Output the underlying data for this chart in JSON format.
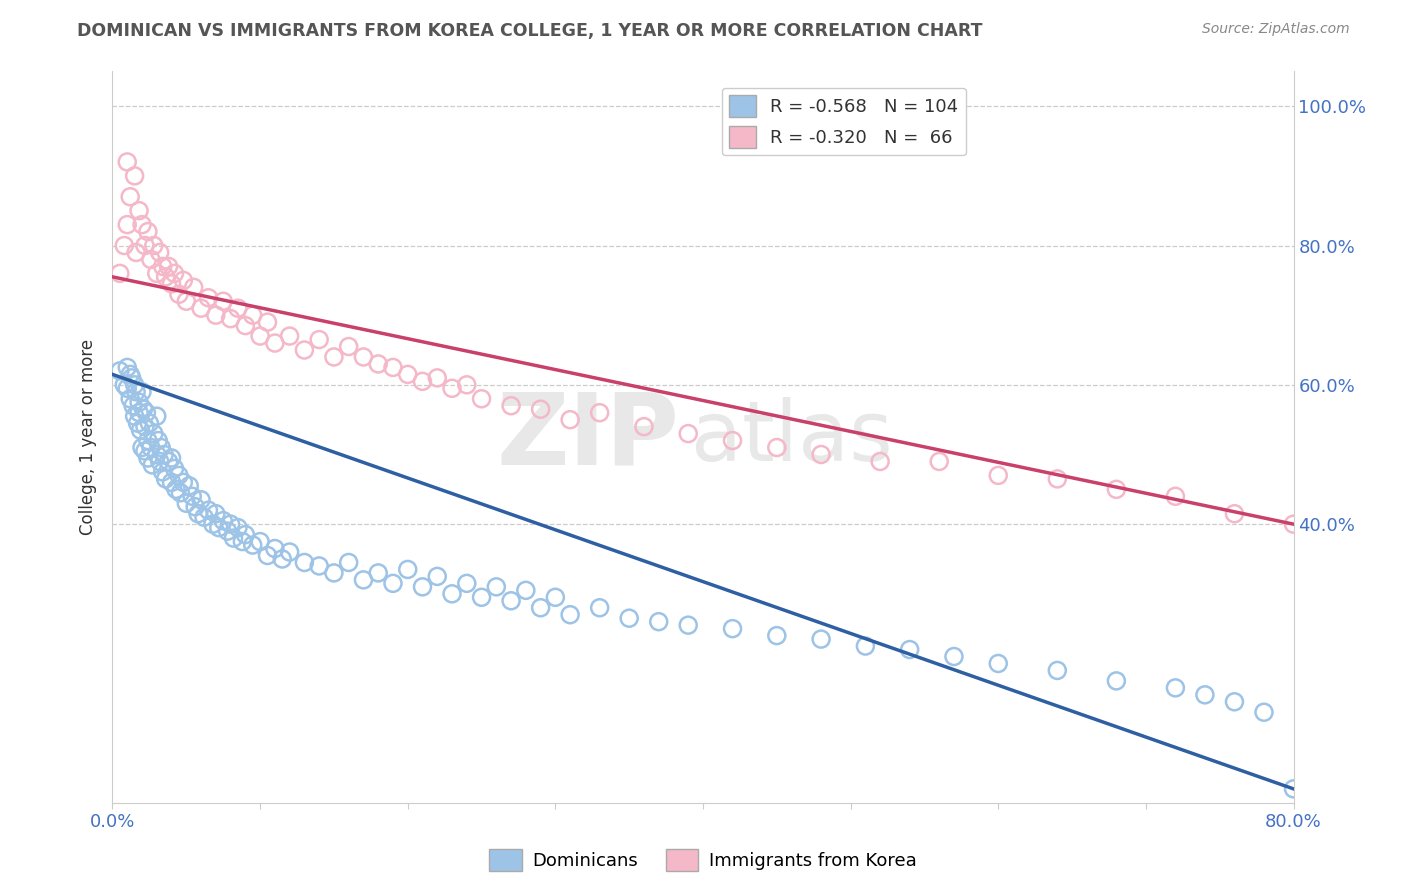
{
  "title": "DOMINICAN VS IMMIGRANTS FROM KOREA COLLEGE, 1 YEAR OR MORE CORRELATION CHART",
  "source": "Source: ZipAtlas.com",
  "ylabel": "College, 1 year or more",
  "xlim": [
    0.0,
    0.8
  ],
  "ylim": [
    0.0,
    1.05
  ],
  "x_ticks": [
    0.0,
    0.1,
    0.2,
    0.3,
    0.4,
    0.5,
    0.6,
    0.7,
    0.8
  ],
  "x_tick_labels": [
    "0.0%",
    "",
    "",
    "",
    "",
    "",
    "",
    "",
    "80.0%"
  ],
  "y_ticks": [
    0.4,
    0.6,
    0.8,
    1.0
  ],
  "y_tick_labels": [
    "40.0%",
    "60.0%",
    "80.0%",
    "100.0%"
  ],
  "blue_color": "#9DC3E6",
  "pink_color": "#F4B8C8",
  "blue_line_color": "#2E5FA3",
  "pink_line_color": "#C9406A",
  "legend_blue_label": "R = -0.568   N = 104",
  "legend_pink_label": "R = -0.320   N =  66",
  "legend_bottom_blue": "Dominicans",
  "legend_bottom_pink": "Immigrants from Korea",
  "watermark_zip": "ZIP",
  "watermark_atlas": "atlas",
  "blue_R": -0.568,
  "blue_N": 104,
  "pink_R": -0.32,
  "pink_N": 66,
  "blue_line_x0": 0.0,
  "blue_line_y0": 0.615,
  "blue_line_x1": 0.8,
  "blue_line_y1": 0.02,
  "pink_line_x0": 0.0,
  "pink_line_y0": 0.755,
  "pink_line_x1": 0.8,
  "pink_line_y1": 0.4,
  "blue_x": [
    0.005,
    0.008,
    0.01,
    0.01,
    0.012,
    0.012,
    0.013,
    0.014,
    0.015,
    0.015,
    0.016,
    0.017,
    0.018,
    0.018,
    0.019,
    0.02,
    0.02,
    0.021,
    0.022,
    0.022,
    0.023,
    0.024,
    0.024,
    0.025,
    0.026,
    0.027,
    0.028,
    0.03,
    0.03,
    0.031,
    0.032,
    0.033,
    0.034,
    0.035,
    0.036,
    0.038,
    0.04,
    0.04,
    0.042,
    0.043,
    0.045,
    0.046,
    0.048,
    0.05,
    0.052,
    0.054,
    0.056,
    0.058,
    0.06,
    0.062,
    0.065,
    0.068,
    0.07,
    0.072,
    0.075,
    0.078,
    0.08,
    0.082,
    0.085,
    0.088,
    0.09,
    0.095,
    0.1,
    0.105,
    0.11,
    0.115,
    0.12,
    0.13,
    0.14,
    0.15,
    0.16,
    0.17,
    0.18,
    0.19,
    0.2,
    0.21,
    0.22,
    0.23,
    0.24,
    0.25,
    0.26,
    0.27,
    0.28,
    0.29,
    0.3,
    0.31,
    0.33,
    0.35,
    0.37,
    0.39,
    0.42,
    0.45,
    0.48,
    0.51,
    0.54,
    0.57,
    0.6,
    0.64,
    0.68,
    0.72,
    0.74,
    0.76,
    0.78,
    0.8
  ],
  "blue_y": [
    0.62,
    0.6,
    0.625,
    0.595,
    0.615,
    0.58,
    0.61,
    0.57,
    0.6,
    0.555,
    0.59,
    0.545,
    0.575,
    0.56,
    0.535,
    0.59,
    0.51,
    0.565,
    0.54,
    0.505,
    0.56,
    0.52,
    0.495,
    0.545,
    0.51,
    0.485,
    0.53,
    0.555,
    0.5,
    0.52,
    0.49,
    0.51,
    0.475,
    0.5,
    0.465,
    0.49,
    0.495,
    0.46,
    0.48,
    0.45,
    0.47,
    0.445,
    0.46,
    0.43,
    0.455,
    0.44,
    0.425,
    0.415,
    0.435,
    0.41,
    0.42,
    0.4,
    0.415,
    0.395,
    0.405,
    0.39,
    0.4,
    0.38,
    0.395,
    0.375,
    0.385,
    0.37,
    0.375,
    0.355,
    0.365,
    0.35,
    0.36,
    0.345,
    0.34,
    0.33,
    0.345,
    0.32,
    0.33,
    0.315,
    0.335,
    0.31,
    0.325,
    0.3,
    0.315,
    0.295,
    0.31,
    0.29,
    0.305,
    0.28,
    0.295,
    0.27,
    0.28,
    0.265,
    0.26,
    0.255,
    0.25,
    0.24,
    0.235,
    0.225,
    0.22,
    0.21,
    0.2,
    0.19,
    0.175,
    0.165,
    0.155,
    0.145,
    0.13,
    0.02
  ],
  "pink_x": [
    0.005,
    0.008,
    0.01,
    0.01,
    0.012,
    0.015,
    0.016,
    0.018,
    0.02,
    0.022,
    0.024,
    0.026,
    0.028,
    0.03,
    0.032,
    0.034,
    0.036,
    0.038,
    0.04,
    0.042,
    0.045,
    0.048,
    0.05,
    0.055,
    0.06,
    0.065,
    0.07,
    0.075,
    0.08,
    0.085,
    0.09,
    0.095,
    0.1,
    0.105,
    0.11,
    0.12,
    0.13,
    0.14,
    0.15,
    0.16,
    0.17,
    0.18,
    0.19,
    0.2,
    0.21,
    0.22,
    0.23,
    0.24,
    0.25,
    0.27,
    0.29,
    0.31,
    0.33,
    0.36,
    0.39,
    0.42,
    0.45,
    0.48,
    0.52,
    0.56,
    0.6,
    0.64,
    0.68,
    0.72,
    0.76,
    0.8
  ],
  "pink_y": [
    0.76,
    0.8,
    0.92,
    0.83,
    0.87,
    0.9,
    0.79,
    0.85,
    0.83,
    0.8,
    0.82,
    0.78,
    0.8,
    0.76,
    0.79,
    0.77,
    0.755,
    0.77,
    0.745,
    0.76,
    0.73,
    0.75,
    0.72,
    0.74,
    0.71,
    0.725,
    0.7,
    0.72,
    0.695,
    0.71,
    0.685,
    0.7,
    0.67,
    0.69,
    0.66,
    0.67,
    0.65,
    0.665,
    0.64,
    0.655,
    0.64,
    0.63,
    0.625,
    0.615,
    0.605,
    0.61,
    0.595,
    0.6,
    0.58,
    0.57,
    0.565,
    0.55,
    0.56,
    0.54,
    0.53,
    0.52,
    0.51,
    0.5,
    0.49,
    0.49,
    0.47,
    0.465,
    0.45,
    0.44,
    0.415,
    0.4
  ]
}
